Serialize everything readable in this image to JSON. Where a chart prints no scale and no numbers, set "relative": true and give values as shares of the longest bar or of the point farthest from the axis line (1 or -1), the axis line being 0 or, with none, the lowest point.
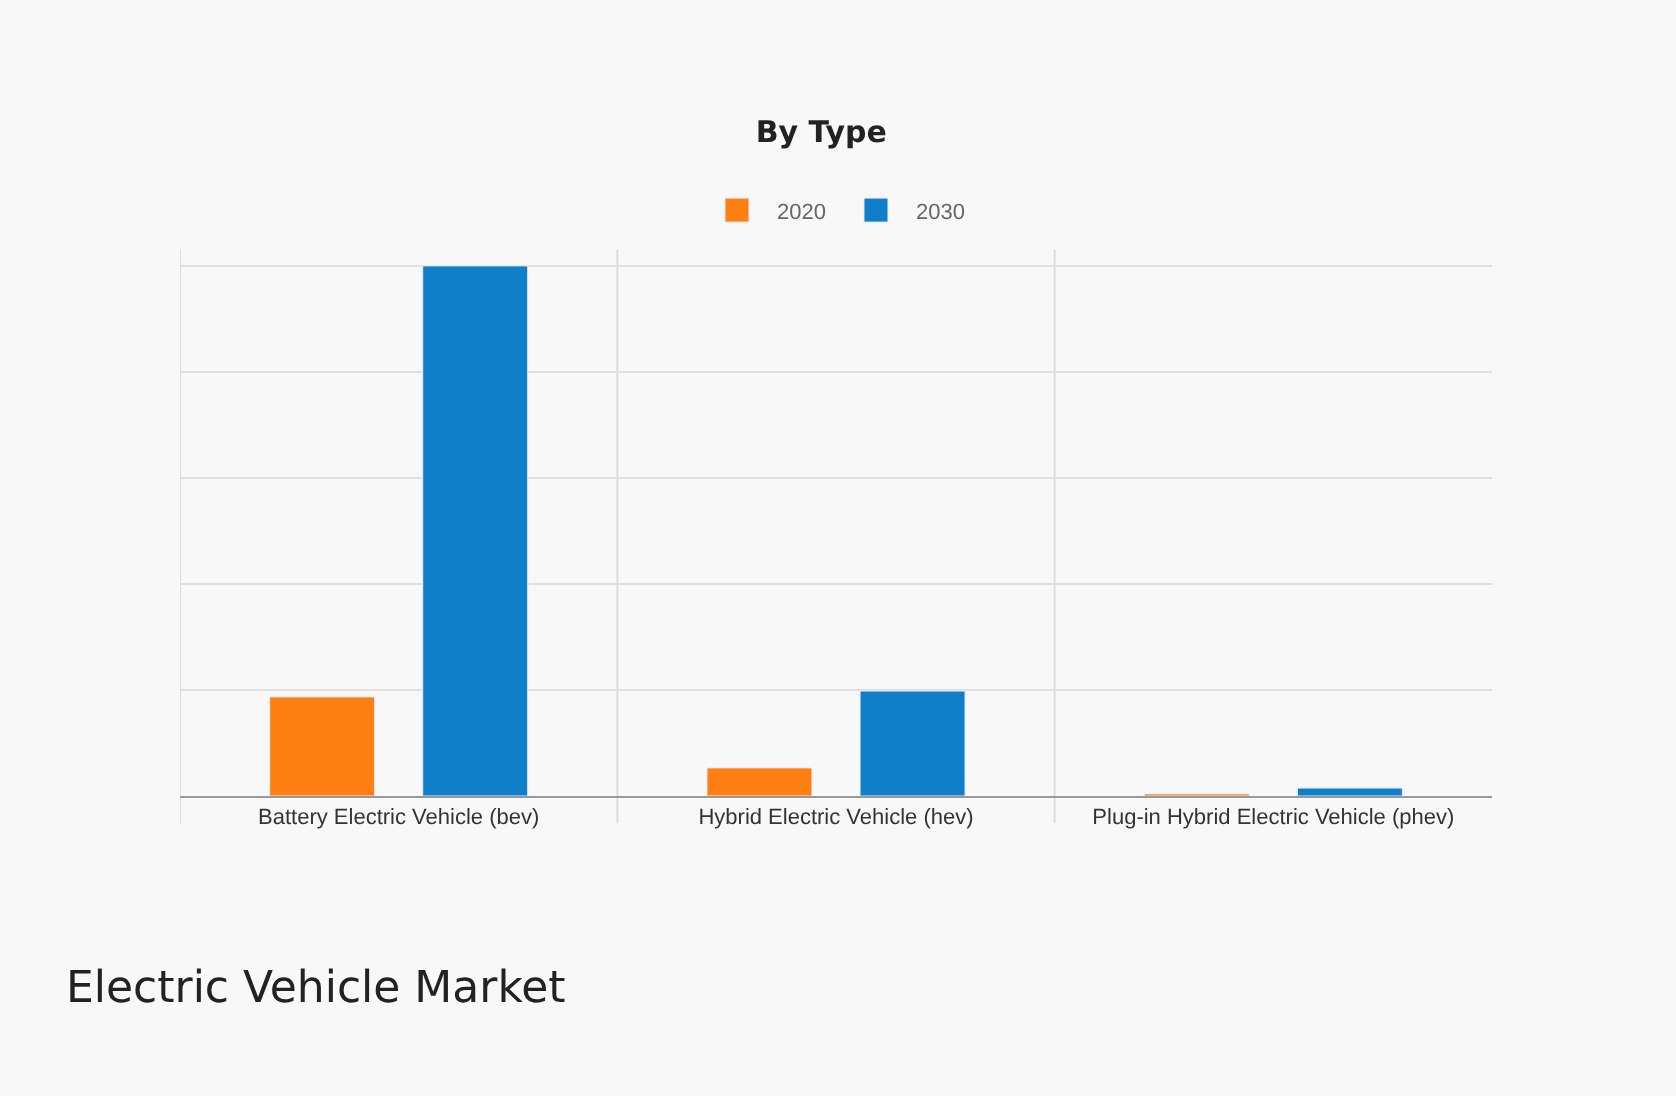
{
  "chart_data": {
    "type": "bar",
    "title": "By Type",
    "relative": true,
    "grid": true,
    "legend": "top",
    "categories": [
      "Battery Electric Vehicle (bev)",
      "Hybrid Electric Vehicle (hev)",
      "Plug-in Hybrid Electric Vehicle (phev)"
    ],
    "series": [
      {
        "name": "2020",
        "color": "#ff8012",
        "values": [
          0.187,
          0.053,
          0.004
        ]
      },
      {
        "name": "2030",
        "color": "#0f7fca",
        "values": [
          1,
          0.198,
          0.015
        ]
      }
    ],
    "annotations": [
      "Electric Vehicle Market"
    ]
  }
}
